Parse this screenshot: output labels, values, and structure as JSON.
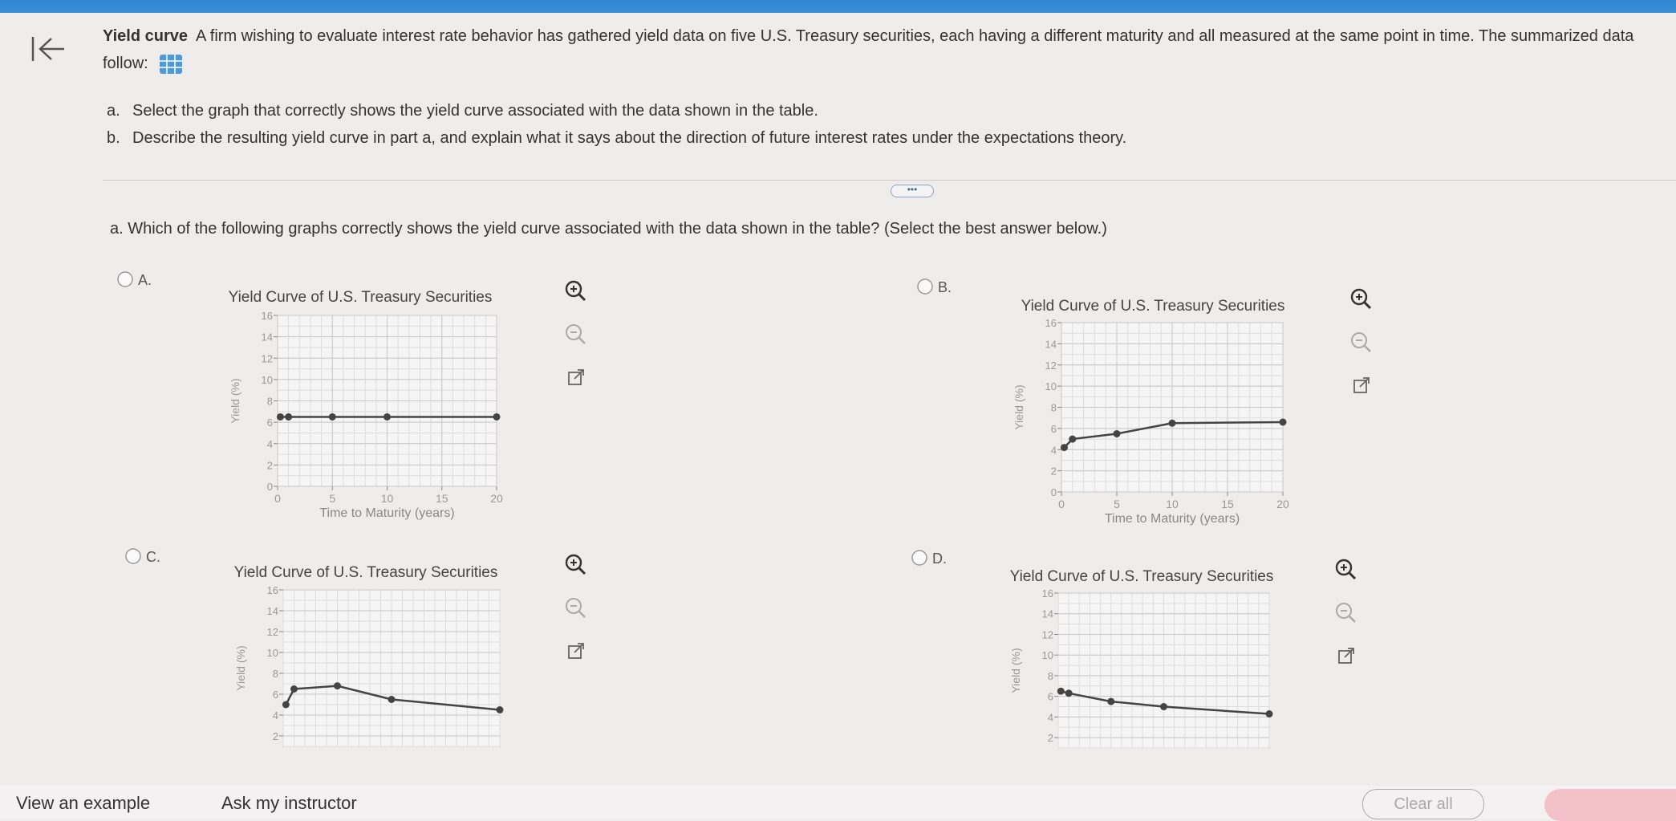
{
  "header": {
    "title": "Yield curve",
    "text": "A firm wishing to evaluate interest rate behavior has gathered yield data on five U.S. Treasury securities, each having a different maturity and all measured at the same point in time. The summarized data follow:"
  },
  "parts": [
    {
      "label": "a.",
      "text": "Select the graph that correctly shows the yield curve associated with the data shown in the table."
    },
    {
      "label": "b.",
      "text": "Describe the resulting yield curve in part a, and explain what it says about the direction of future interest rates under the expectations theory."
    }
  ],
  "question": "a. Which of the following graphs correctly shows the yield curve associated with the data shown in the table? (Select the best answer below.)",
  "options": [
    {
      "label": "A.",
      "chart": {
        "type": "line",
        "title": "Yield Curve of U.S. Treasury Securities",
        "xlabel": "Time to Maturity (years)",
        "ylabel": "Yield (%)",
        "x": [
          0.25,
          1,
          5,
          10,
          20
        ],
        "values": [
          6.5,
          6.5,
          6.5,
          6.5,
          6.5
        ],
        "xlim": [
          0,
          20
        ],
        "ylim": [
          0,
          16
        ],
        "xticks": [
          0,
          5,
          10,
          15,
          20
        ],
        "yticks": [
          0,
          2,
          4,
          6,
          8,
          10,
          12,
          14,
          16
        ],
        "color": "#444444",
        "grid": true
      }
    },
    {
      "label": "B.",
      "chart": {
        "type": "line",
        "title": "Yield Curve of U.S. Treasury Securities",
        "xlabel": "Time to Maturity (years)",
        "ylabel": "Yield (%)",
        "x": [
          0.25,
          1,
          5,
          10,
          20
        ],
        "values": [
          4.2,
          5,
          5.5,
          6.5,
          6.6
        ],
        "xlim": [
          0,
          20
        ],
        "ylim": [
          0,
          16
        ],
        "xticks": [
          0,
          5,
          10,
          15,
          20
        ],
        "yticks": [
          0,
          2,
          4,
          6,
          8,
          10,
          12,
          14,
          16
        ],
        "color": "#444444",
        "grid": true
      }
    },
    {
      "label": "C.",
      "chart": {
        "type": "line",
        "title": "Yield Curve of U.S. Treasury Securities",
        "ylabel": "Yield (%)",
        "x": [
          0.25,
          1,
          5,
          10,
          20
        ],
        "values": [
          5,
          6.5,
          6.8,
          5.5,
          4.5
        ],
        "xlim": [
          0,
          20
        ],
        "ylim": [
          1,
          16
        ],
        "yticks": [
          2,
          4,
          6,
          8,
          10,
          12,
          14,
          16
        ],
        "color": "#444444",
        "grid": true
      }
    },
    {
      "label": "D.",
      "chart": {
        "type": "line",
        "title": "Yield Curve of U.S. Treasury Securities",
        "ylabel": "Yield (%)",
        "x": [
          0.25,
          1,
          5,
          10,
          20
        ],
        "values": [
          6.5,
          6.3,
          5.5,
          5,
          4.3
        ],
        "xlim": [
          0,
          20
        ],
        "ylim": [
          1,
          16
        ],
        "yticks": [
          2,
          4,
          6,
          8,
          10,
          12,
          14,
          16
        ],
        "color": "#444444",
        "grid": true
      }
    }
  ],
  "footer": {
    "links": [
      "View an example",
      "Ask my instructor"
    ],
    "button": "Clear all"
  }
}
